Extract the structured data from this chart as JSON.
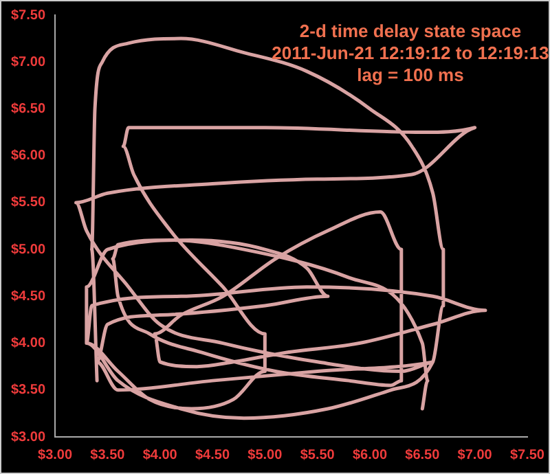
{
  "chart_data": {
    "type": "line",
    "title": "2-d time delay state space",
    "subtitle": "2011-Jun-21 12:19:12 to 12:19:13",
    "annotations": [
      "lag = 100 ms"
    ],
    "series": [
      {
        "color": "#d9a3a3",
        "x": [
          3.4,
          3.35,
          3.38,
          3.45,
          3.7,
          4.2,
          4.8,
          5.4,
          6.0,
          6.4,
          6.6,
          6.7,
          6.7,
          6.6,
          6.2,
          5.6,
          4.8,
          4.2,
          3.6,
          3.3,
          3.3,
          3.5,
          4.3,
          5.0,
          5.4,
          5.6,
          5.0,
          4.0,
          3.5,
          3.4,
          3.6,
          4.5,
          5.5,
          6.6,
          6.3,
          5.5,
          4.6,
          4.0,
          3.7,
          3.3,
          3.2,
          3.5,
          4.5,
          5.5,
          6.4,
          7.0,
          6.5,
          5.0,
          3.7,
          3.65,
          3.75,
          4.1,
          4.6,
          5.0,
          5.0,
          4.7,
          4.3,
          3.9,
          3.6,
          3.3,
          3.35,
          4.2,
          5.4,
          6.6,
          7.1,
          6.6,
          5.9,
          5.2,
          4.7,
          4.35,
          4.0,
          3.95,
          4.2,
          4.6,
          5.1,
          5.6,
          6.1,
          6.3,
          6.3,
          6.3,
          6.2,
          5.8,
          5.1,
          4.4,
          3.9,
          3.6,
          3.55,
          3.6,
          4.1,
          4.8,
          5.8,
          6.5,
          6.55,
          6.5
        ],
        "values": [
          3.6,
          5.0,
          6.5,
          7.0,
          7.2,
          7.25,
          7.1,
          6.9,
          6.5,
          6.1,
          5.6,
          5.0,
          4.4,
          3.8,
          3.5,
          3.3,
          3.2,
          3.3,
          3.6,
          4.0,
          4.6,
          5.0,
          5.1,
          5.0,
          4.8,
          4.5,
          4.4,
          4.3,
          4.2,
          3.8,
          3.5,
          3.6,
          3.7,
          3.8,
          3.7,
          3.8,
          4.0,
          4.2,
          4.6,
          5.2,
          5.5,
          5.6,
          5.7,
          5.75,
          5.8,
          6.3,
          6.25,
          6.3,
          6.3,
          6.1,
          5.8,
          5.2,
          4.6,
          4.1,
          3.7,
          3.4,
          3.3,
          3.4,
          3.7,
          4.0,
          4.4,
          4.5,
          4.6,
          4.5,
          4.35,
          4.2,
          4.0,
          3.9,
          3.8,
          3.75,
          3.8,
          4.1,
          4.3,
          4.5,
          4.9,
          5.2,
          5.4,
          5.0,
          4.2,
          3.6,
          3.55,
          3.6,
          3.7,
          3.9,
          4.1,
          4.5,
          4.9,
          5.05,
          5.1,
          5.0,
          4.7,
          4.0,
          3.6,
          3.3
        ]
      }
    ],
    "xlim": [
      3,
      7.5
    ],
    "ylim": [
      3,
      7.5
    ],
    "xticks": [
      {
        "value": 3,
        "label": "$3.00"
      },
      {
        "value": 3.5,
        "label": "$3.50"
      },
      {
        "value": 4,
        "label": "$4.00"
      },
      {
        "value": 4.5,
        "label": "$4.50"
      },
      {
        "value": 5,
        "label": "$5.00"
      },
      {
        "value": 5.5,
        "label": "$5.50"
      },
      {
        "value": 6,
        "label": "$6.00"
      },
      {
        "value": 6.5,
        "label": "$6.50"
      },
      {
        "value": 7,
        "label": "$7.00"
      },
      {
        "value": 7.5,
        "label": "$7.50"
      }
    ],
    "yticks": [
      {
        "value": 3,
        "label": "$3.00"
      },
      {
        "value": 3.5,
        "label": "$3.50"
      },
      {
        "value": 4,
        "label": "$4.00"
      },
      {
        "value": 4.5,
        "label": "$4.50"
      },
      {
        "value": 5,
        "label": "$5.00"
      },
      {
        "value": 5.5,
        "label": "$5.50"
      },
      {
        "value": 6,
        "label": "$6.00"
      },
      {
        "value": 6.5,
        "label": "$6.50"
      },
      {
        "value": 7,
        "label": "$7.00"
      },
      {
        "value": 7.5,
        "label": "$7.50"
      }
    ],
    "grid": false,
    "legend": false,
    "marker": "none"
  }
}
